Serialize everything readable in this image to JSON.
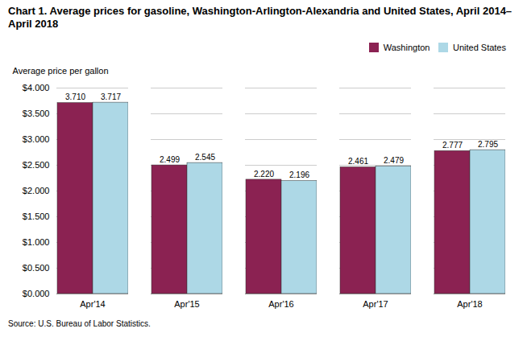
{
  "chart_data": {
    "type": "bar",
    "title": "Chart 1. Average prices for gasoline, Washington-Arlington-Alexandria and United States, April 2014–April 2018",
    "y_label": "Average price per gallon",
    "source": "Source: U.S. Bureau of Labor Statistics.",
    "categories": [
      "Apr'14",
      "Apr'15",
      "Apr'16",
      "Apr'17",
      "Apr'18"
    ],
    "series": [
      {
        "name": "Washington",
        "color": "#8B2252",
        "values": [
          3.71,
          2.499,
          2.22,
          2.461,
          2.777
        ],
        "value_labels": [
          "3.710",
          "2.499",
          "2.220",
          "2.461",
          "2.777"
        ]
      },
      {
        "name": "United States",
        "color": "#ADD8E6",
        "values": [
          3.717,
          2.545,
          2.196,
          2.479,
          2.795
        ],
        "value_labels": [
          "3.717",
          "2.545",
          "2.196",
          "2.479",
          "2.795"
        ]
      }
    ],
    "ylim": [
      0,
      4.0
    ],
    "yticks": [
      {
        "value": 0.0,
        "label": "$0.000"
      },
      {
        "value": 0.5,
        "label": "$0.500"
      },
      {
        "value": 1.0,
        "label": "$1.000"
      },
      {
        "value": 1.5,
        "label": "$1.500"
      },
      {
        "value": 2.0,
        "label": "$2.000"
      },
      {
        "value": 2.5,
        "label": "$2.500"
      },
      {
        "value": 3.0,
        "label": "$3.000"
      },
      {
        "value": 3.5,
        "label": "$3.500"
      },
      {
        "value": 4.0,
        "label": "$4.000"
      }
    ],
    "grid": true,
    "legend": "upper right",
    "data_labels": true
  }
}
